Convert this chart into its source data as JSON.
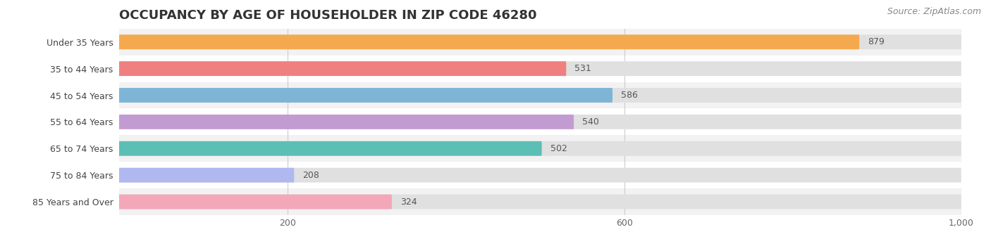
{
  "title": "OCCUPANCY BY AGE OF HOUSEHOLDER IN ZIP CODE 46280",
  "source": "Source: ZipAtlas.com",
  "categories": [
    "Under 35 Years",
    "35 to 44 Years",
    "45 to 54 Years",
    "55 to 64 Years",
    "65 to 74 Years",
    "75 to 84 Years",
    "85 Years and Over"
  ],
  "values": [
    879,
    531,
    586,
    540,
    502,
    208,
    324
  ],
  "bar_colors": [
    "#f5a94e",
    "#f08080",
    "#7eb5d6",
    "#c39bd3",
    "#5bbfb5",
    "#b0b8f0",
    "#f4a7b9"
  ],
  "bar_bg_color": "#e0e0e0",
  "xlim": [
    0,
    1000
  ],
  "xticks": [
    200,
    600,
    1000
  ],
  "title_fontsize": 13,
  "label_fontsize": 9,
  "value_fontsize": 9,
  "source_fontsize": 9,
  "bar_height": 0.55,
  "background_color": "#ffffff",
  "row_bg_colors": [
    "#f2f2f2",
    "#ffffff"
  ]
}
